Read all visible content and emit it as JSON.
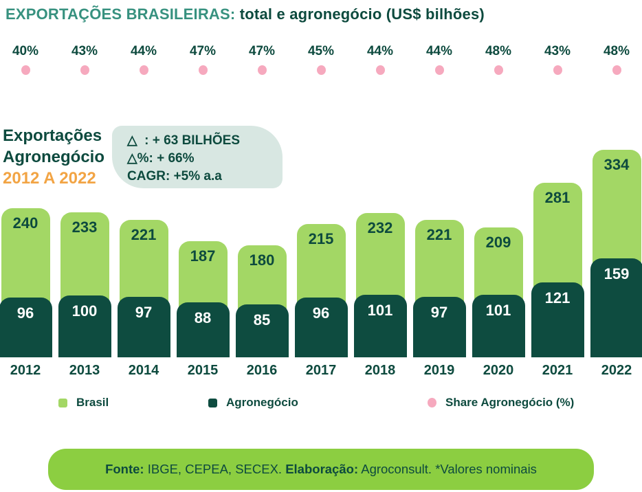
{
  "title": {
    "highlight": "EXPORTAÇÕES BRASILEIRAS:",
    "rest": " total e agronegócio (US$ bilhões)"
  },
  "annotation": {
    "line1": "Exportações",
    "line2": "Agronegócio",
    "line3": "2012 A 2022"
  },
  "callout": {
    "line1": "△  : + 63 BILHÕES",
    "line2": "△%: + 66%",
    "line3": "CAGR: +5% a.a"
  },
  "chart_data": {
    "type": "bar",
    "title": "EXPORTAÇÕES BRASILEIRAS: total e agronegócio (US$ bilhões)",
    "categories": [
      "2012",
      "2013",
      "2014",
      "2015",
      "2016",
      "2017",
      "2018",
      "2019",
      "2020",
      "2021",
      "2022"
    ],
    "series": [
      {
        "name": "Brasil",
        "color": "#A3D765",
        "values": [
          240,
          233,
          221,
          187,
          180,
          215,
          232,
          221,
          209,
          281,
          334
        ]
      },
      {
        "name": "Agronegócio",
        "color": "#0E4C40",
        "values": [
          96,
          100,
          97,
          88,
          85,
          96,
          101,
          97,
          101,
          121,
          159
        ]
      },
      {
        "name": "Share Agronegócio (%)",
        "color": "#F6A9BE",
        "values": [
          40,
          43,
          44,
          47,
          47,
          45,
          44,
          44,
          48,
          43,
          48
        ]
      }
    ],
    "ylabel": "US$ bilhões",
    "ylim": [
      0,
      340
    ],
    "grid": false,
    "legend_position": "bottom"
  },
  "legend": [
    {
      "label": "Brasil",
      "color": "#A3D765",
      "shape": "square"
    },
    {
      "label": "Agronegócio",
      "color": "#0E4C40",
      "shape": "square"
    },
    {
      "label": "Share Agronegócio (%)",
      "color": "#F6A9BE",
      "shape": "circle"
    }
  ],
  "footer": {
    "fonte_label": "Fonte:",
    "fonte_value": " IBGE, CEPEA, SECEX. ",
    "elaboracao_label": "Elaboração:",
    "elaboracao_value": " Agroconsult. *Valores nominais"
  },
  "colors": {
    "title_highlight": "#37917F",
    "text_dark": "#0D4A3E",
    "bar_light": "#A3D765",
    "bar_dark": "#0E4C40",
    "share_pink": "#F6A9BE",
    "range_orange": "#F2A444",
    "callout_bg": "#D8E7E2",
    "footer_bg": "#8CCE41"
  }
}
